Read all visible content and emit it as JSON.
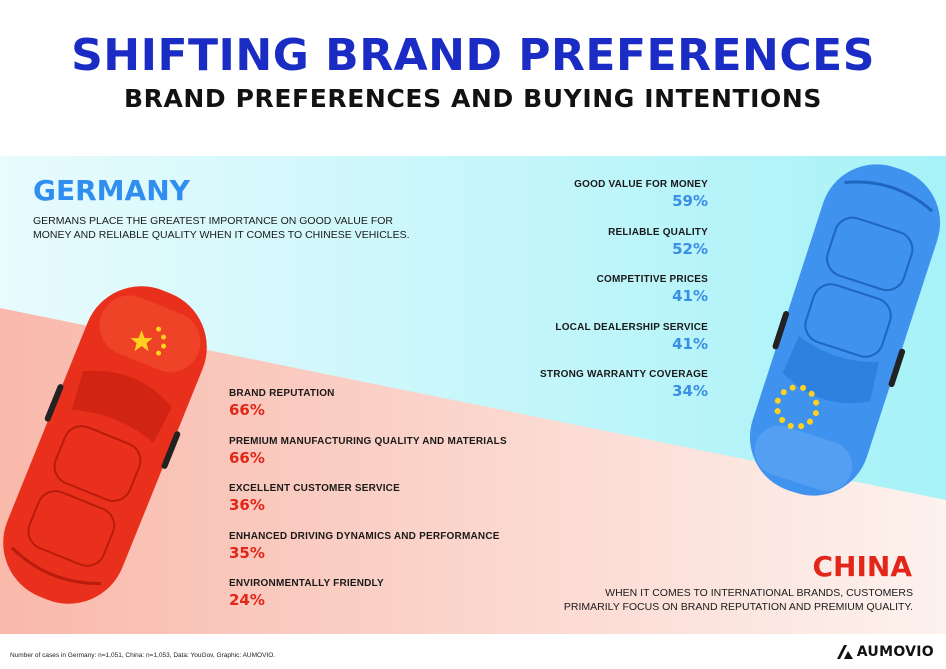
{
  "header": {
    "title": "SHIFTING BRAND PREFERENCES",
    "subtitle": "BRAND PREFERENCES AND BUYING INTENTIONS"
  },
  "germany": {
    "title": "GERMANY",
    "description": "GERMANS PLACE THE GREATEST IMPORTANCE ON GOOD VALUE FOR MONEY AND RELIABLE QUALITY WHEN IT COMES TO CHINESE VEHICLES.",
    "stats": [
      {
        "label": "GOOD VALUE FOR MONEY",
        "value": "59%"
      },
      {
        "label": "RELIABLE QUALITY",
        "value": "52%"
      },
      {
        "label": "COMPETITIVE PRICES",
        "value": "41%"
      },
      {
        "label": "LOCAL DEALERSHIP SERVICE",
        "value": "41%"
      },
      {
        "label": "STRONG WARRANTY COVERAGE",
        "value": "34%"
      }
    ]
  },
  "china": {
    "title": "CHINA",
    "description": "WHEN IT COMES TO INTERNATIONAL BRANDS, CUSTOMERS PRIMARILY FOCUS ON BRAND REPUTATION AND PREMIUM QUALITY.",
    "stats": [
      {
        "label": "BRAND REPUTATION",
        "value": "66%"
      },
      {
        "label": "PREMIUM MANUFACTURING QUALITY AND MATERIALS",
        "value": "66%"
      },
      {
        "label": "EXCELLENT CUSTOMER SERVICE",
        "value": "36%"
      },
      {
        "label": "ENHANCED DRIVING DYNAMICS AND PERFORMANCE",
        "value": "35%"
      },
      {
        "label": "ENVIRONMENTALLY FRIENDLY",
        "value": "24%"
      }
    ]
  },
  "footer": {
    "footnote": "Number of cases in Germany: n=1,051, China: n=1,053, Data: YouGov, Graphic: AUMOVIO.",
    "logo_text": "AUMOVIO"
  },
  "colors": {
    "title_blue": "#1a2cc4",
    "germany_blue": "#3b8ee6",
    "china_red": "#e3261a",
    "cyan_bg": "#cdf6fa",
    "pink_bg": "#fbd1c7"
  },
  "icons": [
    "chinese-flag-car",
    "eu-flag-car",
    "aumovio-logo-icon"
  ]
}
